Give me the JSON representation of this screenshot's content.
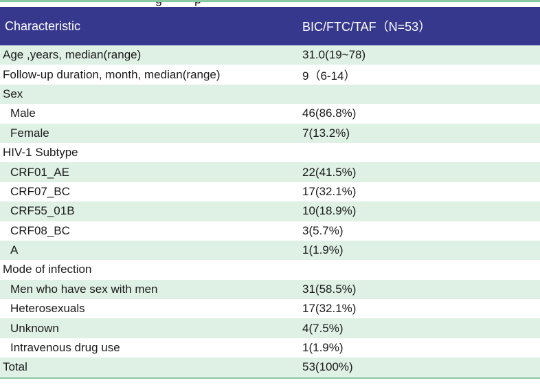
{
  "caption_fragments": {
    "g": "g",
    "p": "p"
  },
  "colors": {
    "header_bg": "#36388E",
    "header_text": "#FFFFFF",
    "row_stripe_bg": "#DFF0E5",
    "rule_green": "#8CC8A0",
    "text": "#1A1A1A"
  },
  "table": {
    "header": {
      "characteristic": "Characteristic",
      "group": "BIC/FTC/TAF（N=53）"
    },
    "rows": [
      {
        "label": "Age ,years, median(range)",
        "value": "31.0(19~78)",
        "indent": false
      },
      {
        "label": "Follow-up duration, month, median(range)",
        "value": "9（6-14）",
        "indent": false
      },
      {
        "label": "Sex",
        "value": "",
        "indent": false
      },
      {
        "label": "Male",
        "value": "46(86.8%)",
        "indent": true
      },
      {
        "label": "Female",
        "value": "7(13.2%)",
        "indent": true
      },
      {
        "label": "HIV-1 Subtype",
        "value": "",
        "indent": false
      },
      {
        "label": "CRF01_AE",
        "value": "22(41.5%)",
        "indent": true
      },
      {
        "label": "CRF07_BC",
        "value": "17(32.1%)",
        "indent": true
      },
      {
        "label": "CRF55_01B",
        "value": "10(18.9%)",
        "indent": true
      },
      {
        "label": "CRF08_BC",
        "value": "3(5.7%)",
        "indent": true
      },
      {
        "label": "A",
        "value": "1(1.9%)",
        "indent": true
      },
      {
        "label": "Mode of infection",
        "value": "",
        "indent": false
      },
      {
        "label": "Men who have sex with men",
        "value": "31(58.5%)",
        "indent": true
      },
      {
        "label": "Heterosexuals",
        "value": "17(32.1%)",
        "indent": true
      },
      {
        "label": "Unknown",
        "value": "4(7.5%)",
        "indent": true
      },
      {
        "label": "Intravenous drug use",
        "value": "1(1.9%)",
        "indent": true
      },
      {
        "label": "Total",
        "value": "53(100%)",
        "indent": false
      }
    ]
  }
}
